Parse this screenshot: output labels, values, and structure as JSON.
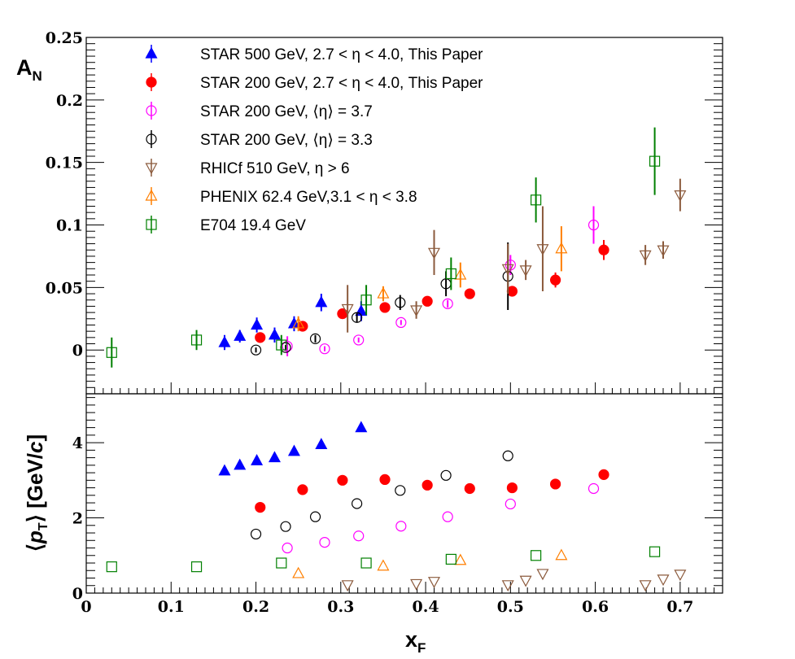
{
  "chart_data": {
    "type": "scatter",
    "layout": "two stacked panels sharing x axis",
    "xlabel": "x_F",
    "xlim": [
      0,
      0.75
    ],
    "x_ticks": [
      "0",
      "0.1",
      "0.2",
      "0.3",
      "0.4",
      "0.5",
      "0.6",
      "0.7"
    ],
    "top_panel": {
      "ylabel": "A_N",
      "ylim": [
        -0.035,
        0.25
      ],
      "y_ticks": [
        "0",
        "0.05",
        "0.1",
        "0.15",
        "0.2",
        "0.25"
      ],
      "legend_position": "top-left"
    },
    "bottom_panel": {
      "ylabel": "⟨p_T⟩ [GeV/c]",
      "ylim": [
        0,
        5.3
      ],
      "y_ticks": [
        "0",
        "2",
        "4"
      ]
    },
    "series": [
      {
        "name": "STAR 500 GeV, 2.7 < η < 4.0, This Paper",
        "color": "#0000ff",
        "marker": "triangle-up",
        "filled": true,
        "x": [
          0.163,
          0.181,
          0.201,
          0.222,
          0.245,
          0.277,
          0.324
        ],
        "an": [
          0.006,
          0.011,
          0.02,
          0.012,
          0.021,
          0.038,
          0.031
        ],
        "an_err": [
          0.006,
          0.005,
          0.006,
          0.006,
          0.006,
          0.007,
          0.008
        ],
        "pt": [
          3.25,
          3.4,
          3.52,
          3.6,
          3.77,
          3.95,
          4.4
        ]
      },
      {
        "name": "STAR 200 GeV, 2.7 < η < 4.0, This Paper",
        "color": "#ff0000",
        "marker": "circle",
        "filled": true,
        "x": [
          0.205,
          0.255,
          0.302,
          0.352,
          0.402,
          0.452,
          0.502,
          0.553,
          0.61
        ],
        "an": [
          0.01,
          0.019,
          0.029,
          0.034,
          0.039,
          0.045,
          0.047,
          0.056,
          0.08
        ],
        "an_err": [
          0.003,
          0.003,
          0.003,
          0.003,
          0.003,
          0.003,
          0.004,
          0.006,
          0.008
        ],
        "pt": [
          2.28,
          2.75,
          3.0,
          3.02,
          2.87,
          2.78,
          2.8,
          2.9,
          3.15
        ]
      },
      {
        "name": "STAR 200 GeV, ⟨η⟩ = 3.7",
        "color": "#ff00ff",
        "marker": "circle",
        "filled": false,
        "x": [
          0.237,
          0.281,
          0.321,
          0.371,
          0.426,
          0.5,
          0.598
        ],
        "an": [
          0.003,
          0.001,
          0.008,
          0.022,
          0.037,
          0.068,
          0.1
        ],
        "an_err": [
          0.008,
          0.002,
          0.002,
          0.002,
          0.003,
          0.008,
          0.015
        ],
        "pt": [
          1.2,
          1.35,
          1.52,
          1.78,
          2.03,
          2.37,
          2.78
        ]
      },
      {
        "name": "STAR 200 GeV, ⟨η⟩ = 3.3",
        "color": "#000000",
        "marker": "circle",
        "filled": false,
        "x": [
          0.2,
          0.235,
          0.27,
          0.319,
          0.37,
          0.424,
          0.497
        ],
        "an": [
          0.0,
          0.002,
          0.009,
          0.026,
          0.038,
          0.053,
          0.059
        ],
        "an_err": [
          0.002,
          0.002,
          0.003,
          0.004,
          0.006,
          0.01,
          0.027
        ],
        "pt": [
          1.57,
          1.77,
          2.03,
          2.38,
          2.73,
          3.13,
          3.65
        ]
      },
      {
        "name": "RHICf 510 GeV, η > 6",
        "color": "#8b5a3c",
        "marker": "triangle-down",
        "filled": false,
        "x": [
          0.308,
          0.389,
          0.41,
          0.497,
          0.518,
          0.538,
          0.659,
          0.68,
          0.7
        ],
        "an": [
          0.033,
          0.032,
          0.078,
          0.065,
          0.064,
          0.081,
          0.076,
          0.08,
          0.124
        ],
        "an_err": [
          0.019,
          0.007,
          0.018,
          0.02,
          0.008,
          0.034,
          0.008,
          0.007,
          0.013
        ],
        "pt": [
          0.22,
          0.25,
          0.31,
          0.22,
          0.34,
          0.52,
          0.22,
          0.37,
          0.5
        ]
      },
      {
        "name": "PHENIX 62.4 GeV,3.1 < η < 3.8",
        "color": "#ff7f00",
        "marker": "triangle-up",
        "filled": false,
        "x": [
          0.25,
          0.35,
          0.441,
          0.56
        ],
        "an": [
          0.021,
          0.045,
          0.06,
          0.081
        ],
        "an_err": [
          0.006,
          0.006,
          0.01,
          0.018
        ],
        "pt": [
          0.52,
          0.72,
          0.87,
          1.0
        ]
      },
      {
        "name": "E704 19.4 GeV",
        "color": "#008000",
        "marker": "square",
        "filled": false,
        "x": [
          0.03,
          0.13,
          0.23,
          0.33,
          0.43,
          0.53,
          0.67
        ],
        "an": [
          -0.002,
          0.008,
          0.004,
          0.04,
          0.061,
          0.12,
          0.151
        ],
        "an_err": [
          0.012,
          0.008,
          0.008,
          0.012,
          0.013,
          0.018,
          0.027
        ],
        "pt": [
          0.7,
          0.7,
          0.8,
          0.8,
          0.9,
          1.0,
          1.1
        ]
      }
    ]
  }
}
